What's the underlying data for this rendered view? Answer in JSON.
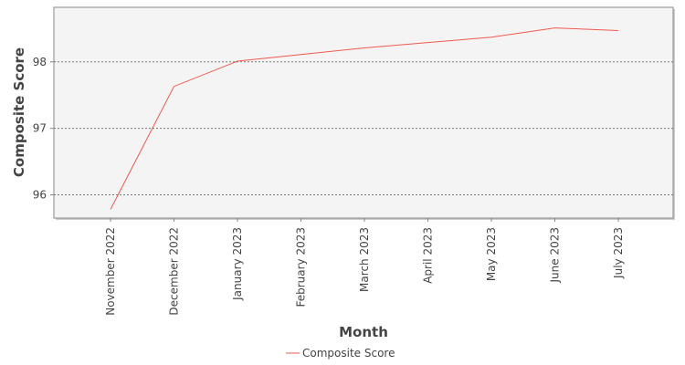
{
  "chart_data": {
    "type": "line",
    "title": "",
    "xlabel": "Month",
    "ylabel": "Composite Score",
    "categories": [
      "November 2022",
      "December 2022",
      "January 2023",
      "February 2023",
      "March 2023",
      "April 2023",
      "May 2023",
      "June 2023",
      "July 2023"
    ],
    "series": [
      {
        "name": "Composite Score",
        "values": [
          95.78,
          97.63,
          98.01,
          98.11,
          98.21,
          98.29,
          98.37,
          98.51,
          98.47
        ]
      }
    ],
    "ylim": [
      95.65,
      98.82
    ],
    "yticks": [
      96,
      97,
      98
    ],
    "grid": "horizontal",
    "legend": "bottom",
    "colors": {
      "series": "#f05a4f",
      "plot_background": "#f4f4f4",
      "grid": "#777777",
      "axis": "#888888"
    }
  }
}
